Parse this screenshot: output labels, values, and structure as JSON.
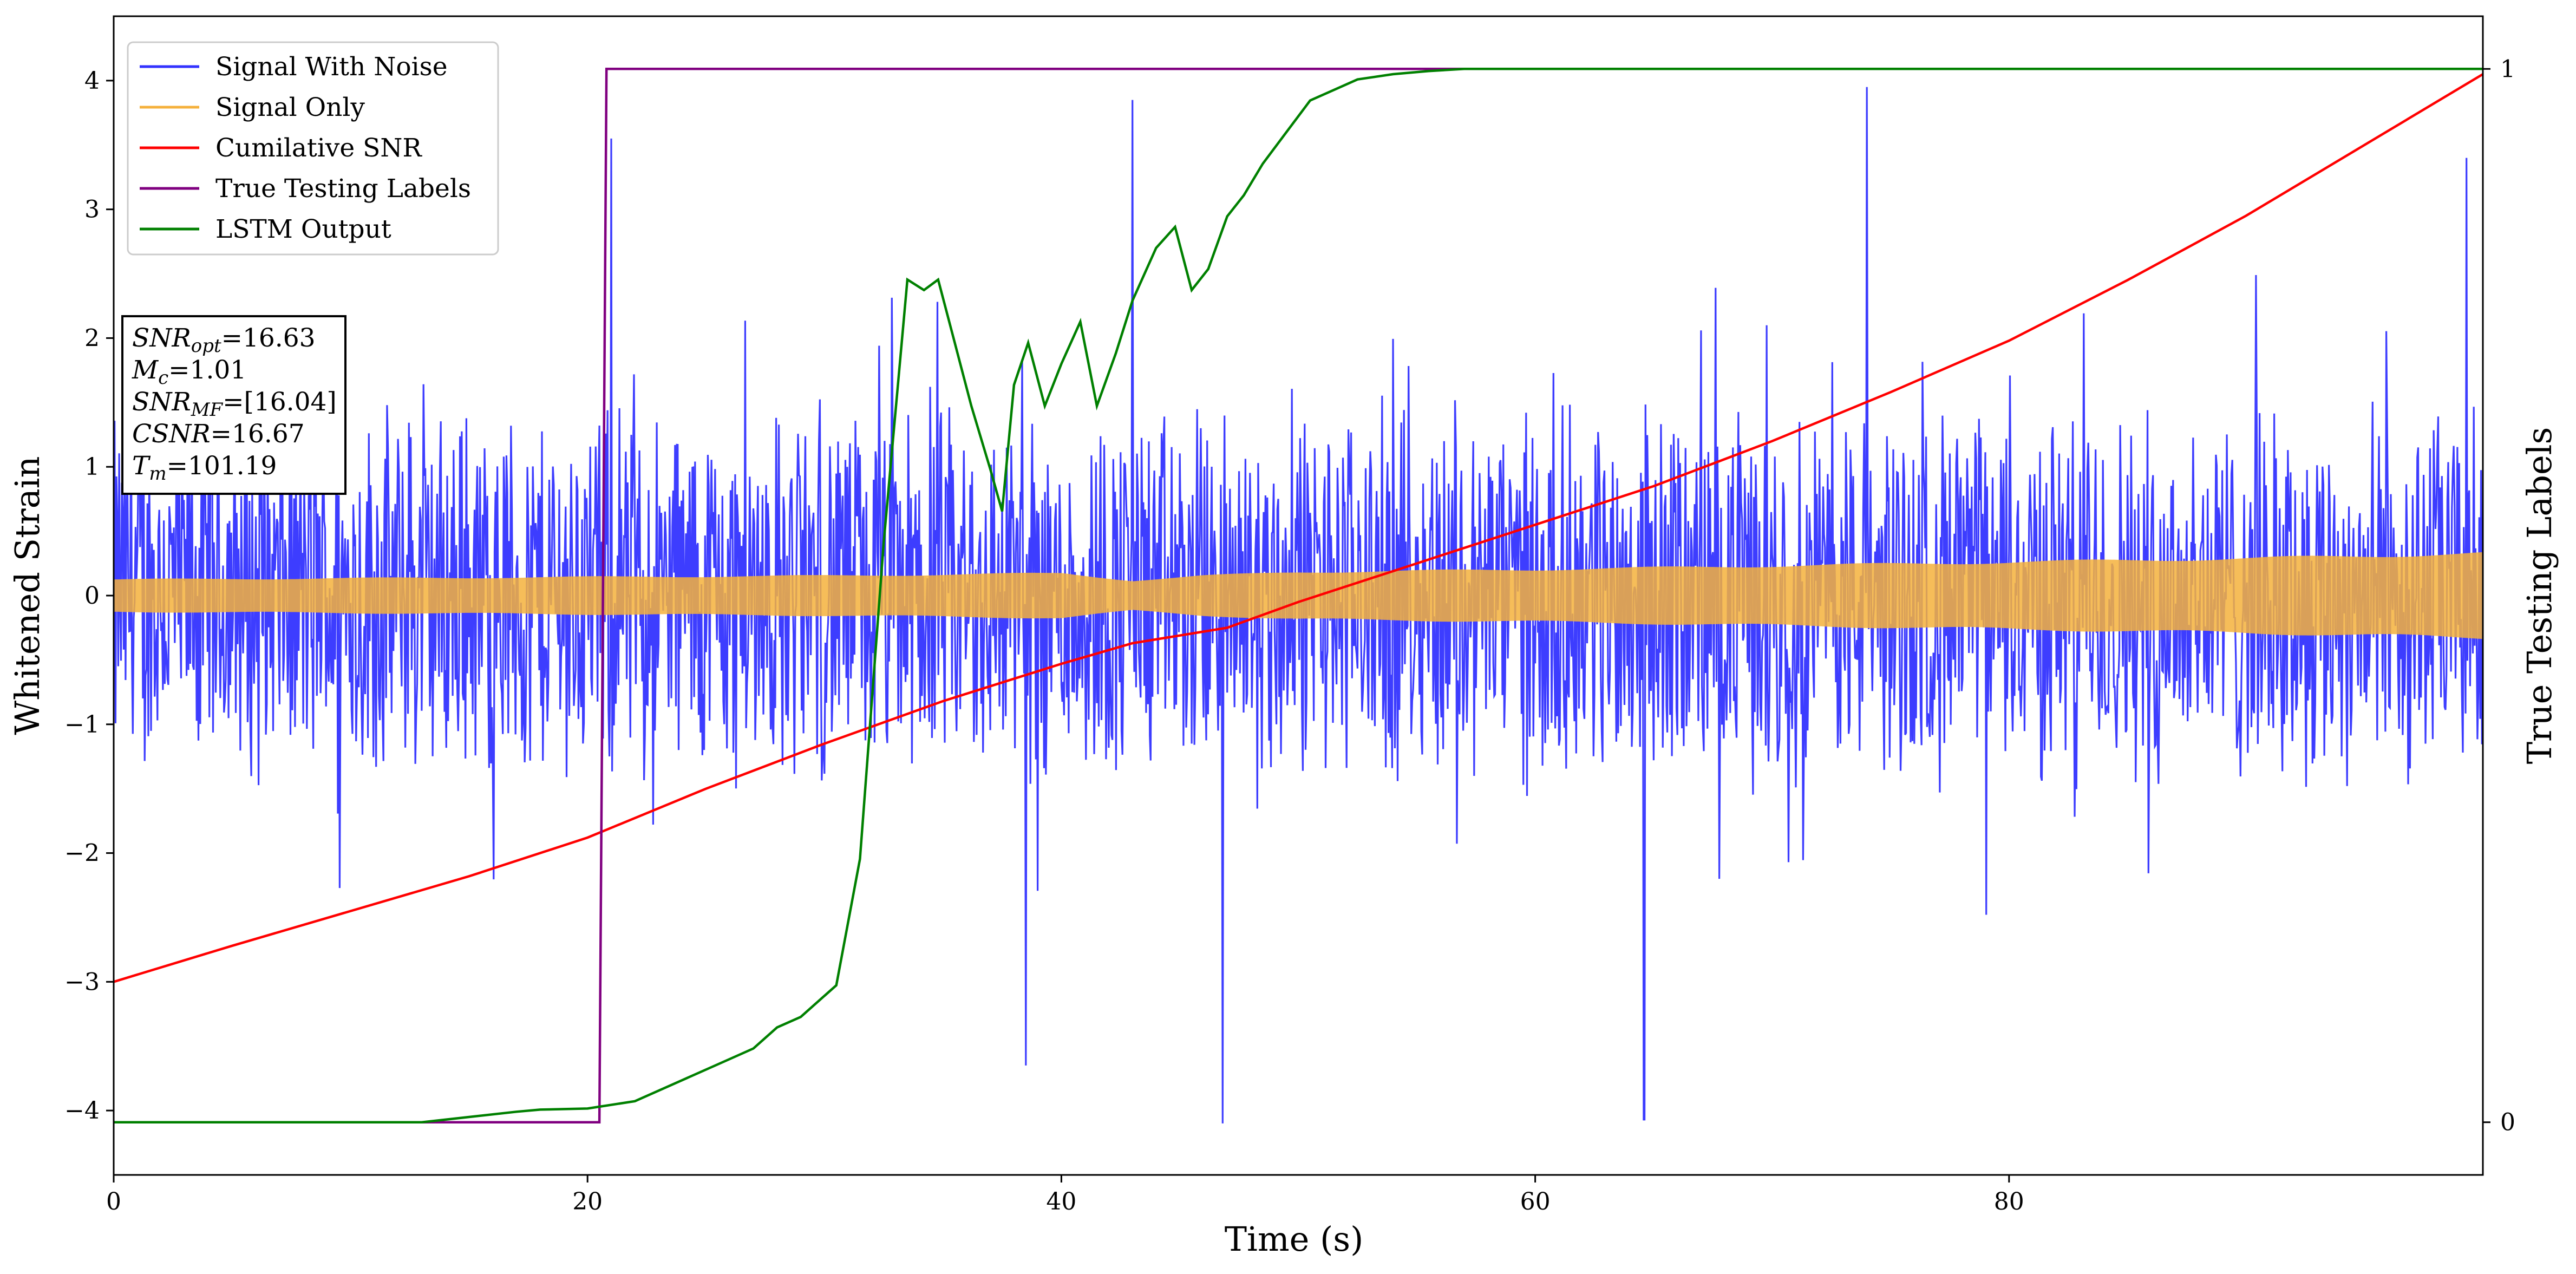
{
  "chart_data": {
    "type": "line",
    "xlabel": "Time (s)",
    "ylabel": "Whitened Strain",
    "ylabel_right": "True Testing Labels",
    "xlim": [
      0,
      100
    ],
    "ylim": [
      -4.5,
      4.5
    ],
    "xticks": [
      0,
      20,
      40,
      60,
      80
    ],
    "yticks": [
      -4,
      -3,
      -2,
      -1,
      0,
      1,
      2,
      3,
      4
    ],
    "ylim_right": [
      -0.05,
      1.05
    ],
    "yticks_right": [
      0,
      1
    ],
    "legend_position": "top-left",
    "series": [
      {
        "name": "Signal With Noise",
        "color": "#3333ff",
        "kind": "noise",
        "typical_amplitude": 1.6,
        "peak_values": [
          {
            "x": 46.8,
            "y": -4.1
          },
          {
            "x": 64.6,
            "y": -4.07
          },
          {
            "x": 74.0,
            "y": 3.95
          },
          {
            "x": 43.0,
            "y": 3.85
          },
          {
            "x": 38.5,
            "y": -3.65
          },
          {
            "x": 21.0,
            "y": 3.55
          },
          {
            "x": 99.3,
            "y": 3.4
          }
        ]
      },
      {
        "name": "Signal Only",
        "color": "#f5b13c",
        "kind": "envelope",
        "x": [
          0,
          10,
          20,
          30,
          40,
          43,
          46,
          50,
          60,
          70,
          80,
          90,
          100
        ],
        "amplitude": [
          0.13,
          0.14,
          0.15,
          0.16,
          0.18,
          0.12,
          0.16,
          0.19,
          0.21,
          0.24,
          0.27,
          0.3,
          0.34
        ]
      },
      {
        "name": "Cumilative SNR",
        "color": "#ff0000",
        "x": [
          0,
          5,
          10,
          15,
          20,
          25,
          30,
          35,
          40,
          43,
          47,
          50,
          55,
          60,
          65,
          70,
          75,
          80,
          85,
          90,
          95,
          100
        ],
        "y": [
          -3.0,
          -2.72,
          -2.45,
          -2.18,
          -1.88,
          -1.5,
          -1.15,
          -0.82,
          -0.53,
          -0.37,
          -0.25,
          -0.05,
          0.25,
          0.55,
          0.85,
          1.2,
          1.58,
          1.98,
          2.45,
          2.95,
          3.5,
          4.05
        ]
      },
      {
        "name": "True Testing Labels",
        "color": "#800080",
        "axis": "right",
        "x": [
          0,
          20.5,
          20.8,
          100
        ],
        "y": [
          0,
          0,
          1,
          1
        ]
      },
      {
        "name": "LSTM Output",
        "color": "#008000",
        "axis": "right",
        "x": [
          0,
          13,
          15,
          17,
          18,
          20,
          22,
          24,
          26,
          27,
          28,
          29,
          29.5,
          30.5,
          31.5,
          32.5,
          33.5,
          34.2,
          34.8,
          35.5,
          36.2,
          37.0,
          37.5,
          38.0,
          38.6,
          39.3,
          40.0,
          40.8,
          41.5,
          42.3,
          43.0,
          44.0,
          44.8,
          45.5,
          46.2,
          47.0,
          47.7,
          48.5,
          49.5,
          50.5,
          51.5,
          52.5,
          54.0,
          55.5,
          57.0,
          58.5,
          60.0,
          100
        ],
        "y": [
          0,
          0,
          0.005,
          0.01,
          0.012,
          0.013,
          0.02,
          0.04,
          0.06,
          0.07,
          0.09,
          0.1,
          0.11,
          0.13,
          0.25,
          0.55,
          0.8,
          0.79,
          0.8,
          0.74,
          0.68,
          0.62,
          0.58,
          0.7,
          0.74,
          0.68,
          0.72,
          0.76,
          0.68,
          0.73,
          0.78,
          0.83,
          0.85,
          0.79,
          0.81,
          0.86,
          0.88,
          0.91,
          0.94,
          0.97,
          0.98,
          0.99,
          0.995,
          0.998,
          1.0,
          1.0,
          1.0,
          1.0
        ]
      }
    ],
    "annotation_lines": [
      {
        "label": "SNR",
        "subscript": "opt",
        "value": "=16.63"
      },
      {
        "label": "M",
        "subscript": "c",
        "value": "=1.01"
      },
      {
        "label": "SNR",
        "subscript": "MF",
        "value": "=[16.04]"
      },
      {
        "label": "CSNR",
        "subscript": "",
        "value": "=16.67"
      },
      {
        "label": "T",
        "subscript": "m",
        "value": "=101.19"
      }
    ]
  }
}
